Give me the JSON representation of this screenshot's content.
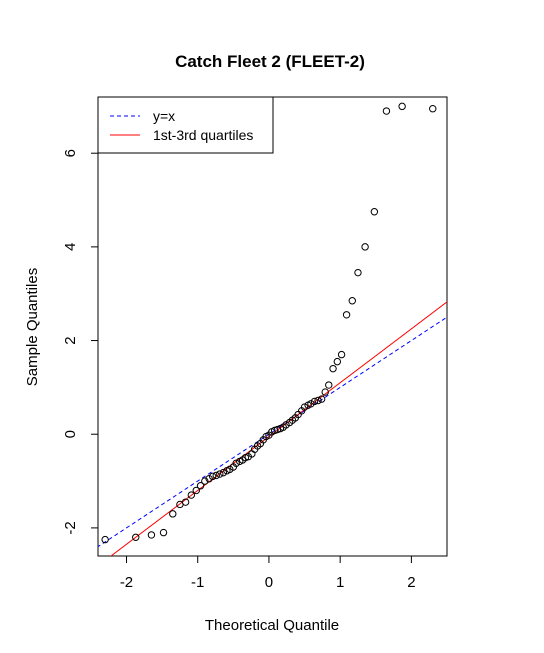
{
  "chart_data": {
    "type": "scatter",
    "title": "Catch Fleet 2 (FLEET-2)",
    "xlabel": "Theoretical Quantile",
    "ylabel": "Sample Quantiles",
    "xlim": [
      -2.4,
      2.5
    ],
    "ylim": [
      -2.6,
      7.2
    ],
    "xticks": [
      -2,
      -1,
      0,
      1,
      2
    ],
    "yticks": [
      -2,
      0,
      2,
      4,
      6
    ],
    "xtick_labels": [
      "-2",
      "-1",
      "0",
      "1",
      "2"
    ],
    "ytick_labels": [
      "-2",
      "0",
      "2",
      "4",
      "6"
    ],
    "grid": false,
    "legend": {
      "position": "top-left",
      "entries": [
        {
          "label": "y=x",
          "color": "#0000ff",
          "style": "dashed"
        },
        {
          "label": "1st-3rd quartiles",
          "color": "#ff0000",
          "style": "solid"
        }
      ]
    },
    "reference_lines": [
      {
        "name": "y=x",
        "slope": 1.0,
        "intercept": 0.0,
        "color": "#0000ff",
        "style": "dashed"
      },
      {
        "name": "1st-3rd quartiles",
        "slope": 1.15,
        "intercept": -0.05,
        "color": "#ff0000",
        "style": "solid"
      }
    ],
    "points": {
      "x": [
        -2.3,
        -1.87,
        -1.65,
        -1.48,
        -1.35,
        -1.25,
        -1.17,
        -1.09,
        -1.02,
        -0.96,
        -0.9,
        -0.84,
        -0.79,
        -0.74,
        -0.69,
        -0.64,
        -0.59,
        -0.55,
        -0.5,
        -0.46,
        -0.41,
        -0.37,
        -0.33,
        -0.29,
        -0.24,
        -0.2,
        -0.16,
        -0.12,
        -0.08,
        -0.04,
        0.0,
        0.04,
        0.08,
        0.12,
        0.16,
        0.2,
        0.24,
        0.29,
        0.33,
        0.37,
        0.41,
        0.46,
        0.5,
        0.55,
        0.59,
        0.64,
        0.69,
        0.74,
        0.79,
        0.84,
        0.9,
        0.96,
        1.02,
        1.09,
        1.17,
        1.25,
        1.35,
        1.48,
        1.65,
        1.87,
        2.3
      ],
      "y": [
        -2.25,
        -2.2,
        -2.15,
        -2.1,
        -1.7,
        -1.5,
        -1.45,
        -1.3,
        -1.2,
        -1.1,
        -1.0,
        -0.95,
        -0.9,
        -0.88,
        -0.85,
        -0.82,
        -0.78,
        -0.75,
        -0.7,
        -0.62,
        -0.58,
        -0.55,
        -0.5,
        -0.48,
        -0.42,
        -0.32,
        -0.25,
        -0.2,
        -0.12,
        -0.05,
        -0.02,
        0.05,
        0.08,
        0.1,
        0.12,
        0.15,
        0.2,
        0.25,
        0.3,
        0.35,
        0.42,
        0.5,
        0.58,
        0.62,
        0.65,
        0.7,
        0.72,
        0.75,
        0.9,
        1.05,
        1.4,
        1.55,
        1.7,
        2.55,
        2.85,
        3.45,
        4.0,
        4.75,
        6.9,
        7.0,
        6.95
      ]
    }
  }
}
